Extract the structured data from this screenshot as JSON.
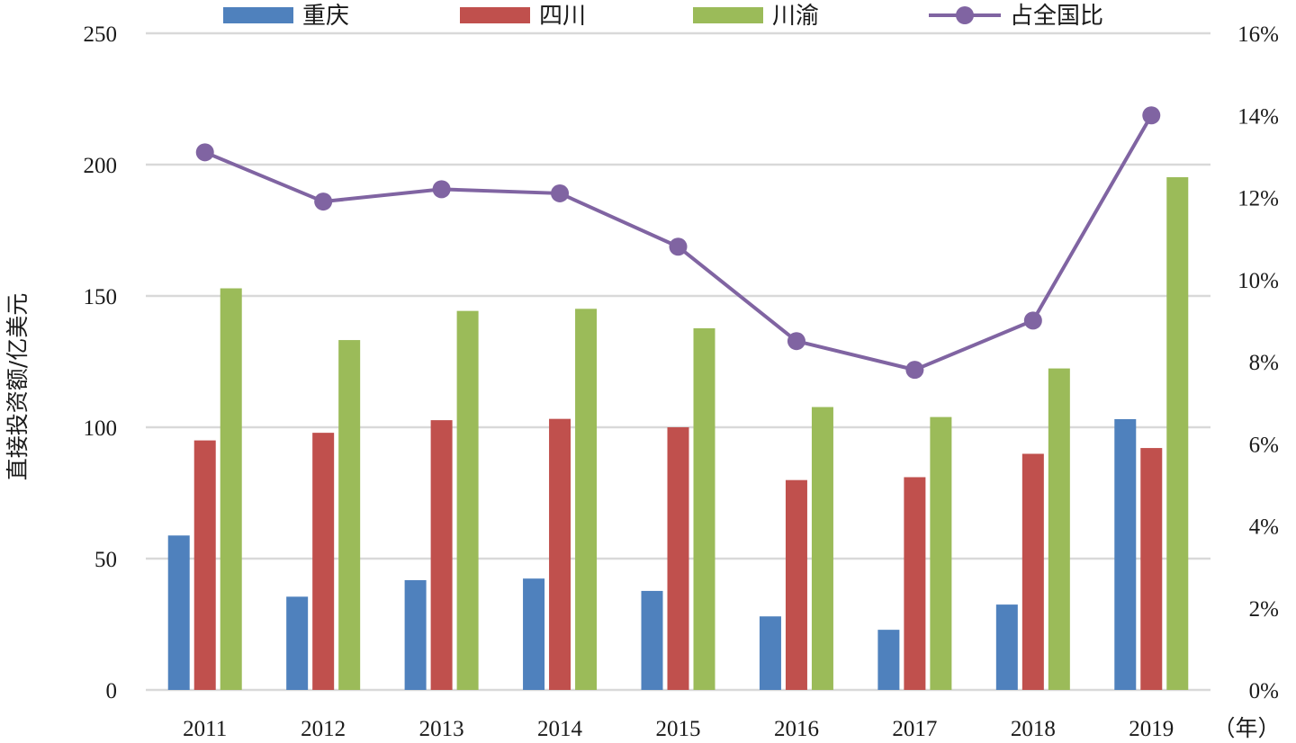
{
  "chart_data": {
    "type": "bar",
    "categories": [
      "2011",
      "2012",
      "2013",
      "2014",
      "2015",
      "2016",
      "2017",
      "2018",
      "2019"
    ],
    "series": [
      {
        "name": "重庆",
        "type": "bar",
        "axis": "left",
        "color": "#4f81bd",
        "values": [
          58.8,
          35.5,
          41.8,
          42.4,
          37.7,
          28.0,
          22.9,
          32.5,
          103.1
        ]
      },
      {
        "name": "四川",
        "type": "bar",
        "axis": "left",
        "color": "#c0504d",
        "values": [
          95.0,
          97.9,
          102.7,
          103.2,
          100.0,
          79.9,
          81.0,
          89.9,
          92.1
        ]
      },
      {
        "name": "川渝",
        "type": "bar",
        "axis": "left",
        "color": "#9bbb59",
        "values": [
          152.9,
          133.2,
          144.3,
          145.1,
          137.7,
          107.7,
          103.9,
          122.4,
          195.2
        ]
      },
      {
        "name": "占全国比",
        "type": "line",
        "axis": "right",
        "color": "#8064a2",
        "values": [
          13.1,
          11.9,
          12.2,
          12.1,
          10.8,
          8.5,
          7.8,
          9.0,
          14.0
        ]
      }
    ],
    "ylabel": "直接投资额/亿美元",
    "ylim": [
      0,
      250
    ],
    "yticks": [
      "0",
      "50",
      "100",
      "150",
      "200",
      "250"
    ],
    "y2lim": [
      0,
      16
    ],
    "y2ticks": [
      "0%",
      "2%",
      "4%",
      "6%",
      "8%",
      "10%",
      "12%",
      "14%",
      "16%"
    ],
    "xunit": "（年）",
    "grid": true,
    "legend_position": "top"
  }
}
